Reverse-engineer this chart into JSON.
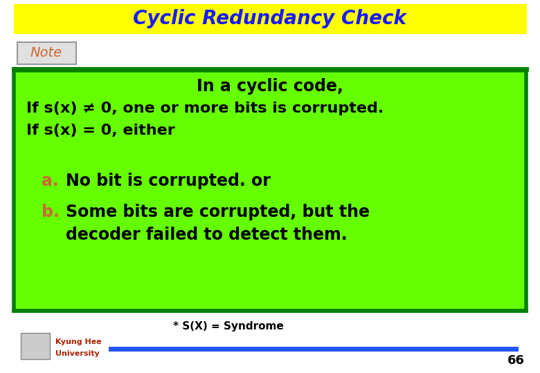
{
  "title": "Cyclic Redundancy Check",
  "title_bg": "#FFFF00",
  "title_color": "#1a1aff",
  "note_label": "Note",
  "note_color": "#cc6633",
  "green_bg": "#66ff00",
  "green_border": "#008000",
  "line1": "In a cyclic code,",
  "line2": "If s(x) ≠ 0, one or more bits is corrupted.",
  "line3": "If s(x) = 0, either",
  "item_a_label": "a.",
  "item_a_text": "No bit is corrupted. or",
  "item_b_label": "b.",
  "item_b_text": "Some bits are corrupted, but the",
  "item_b_text2": "decoder failed to detect them.",
  "item_color": "#cc6633",
  "main_text_color": "#000000",
  "footnote": "* S(X) = Syndrome",
  "page_number": "66",
  "blue_line_color": "#2255ff",
  "bg_color": "#ffffff",
  "note_bg": "#e0e0e0",
  "note_border": "#999999"
}
